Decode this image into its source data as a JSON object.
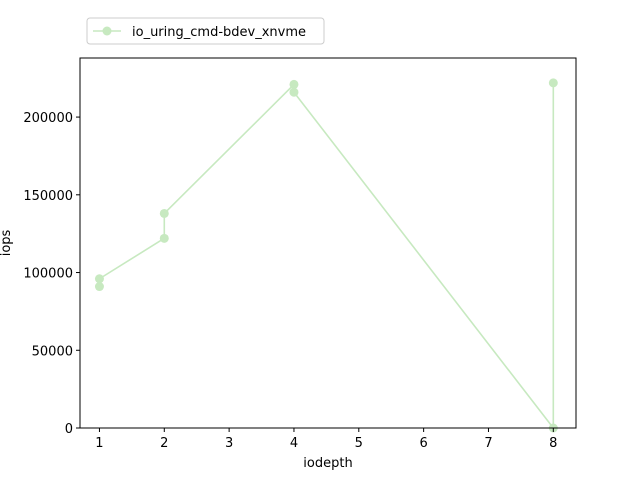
{
  "chart_data": {
    "type": "line",
    "title": "",
    "xlabel": "iodepth",
    "ylabel": "iops",
    "xlim": [
      0.7,
      8.35
    ],
    "ylim": [
      0,
      238000
    ],
    "xticks": [
      1,
      2,
      3,
      4,
      5,
      6,
      7,
      8
    ],
    "yticks": [
      0,
      50000,
      100000,
      150000,
      200000
    ],
    "grid": false,
    "legend_position": "top-left, above plot",
    "series": [
      {
        "name": "io_uring_cmd-bdev_xnvme",
        "color": "#c7e9c0",
        "marker": "circle",
        "points": [
          {
            "x": 1,
            "y": 91000
          },
          {
            "x": 1,
            "y": 96000
          },
          {
            "x": 2,
            "y": 122000
          },
          {
            "x": 2,
            "y": 138000
          },
          {
            "x": 4,
            "y": 221000
          },
          {
            "x": 4,
            "y": 216000
          },
          {
            "x": 8,
            "y": 0
          },
          {
            "x": 8,
            "y": 222000
          }
        ]
      }
    ]
  }
}
